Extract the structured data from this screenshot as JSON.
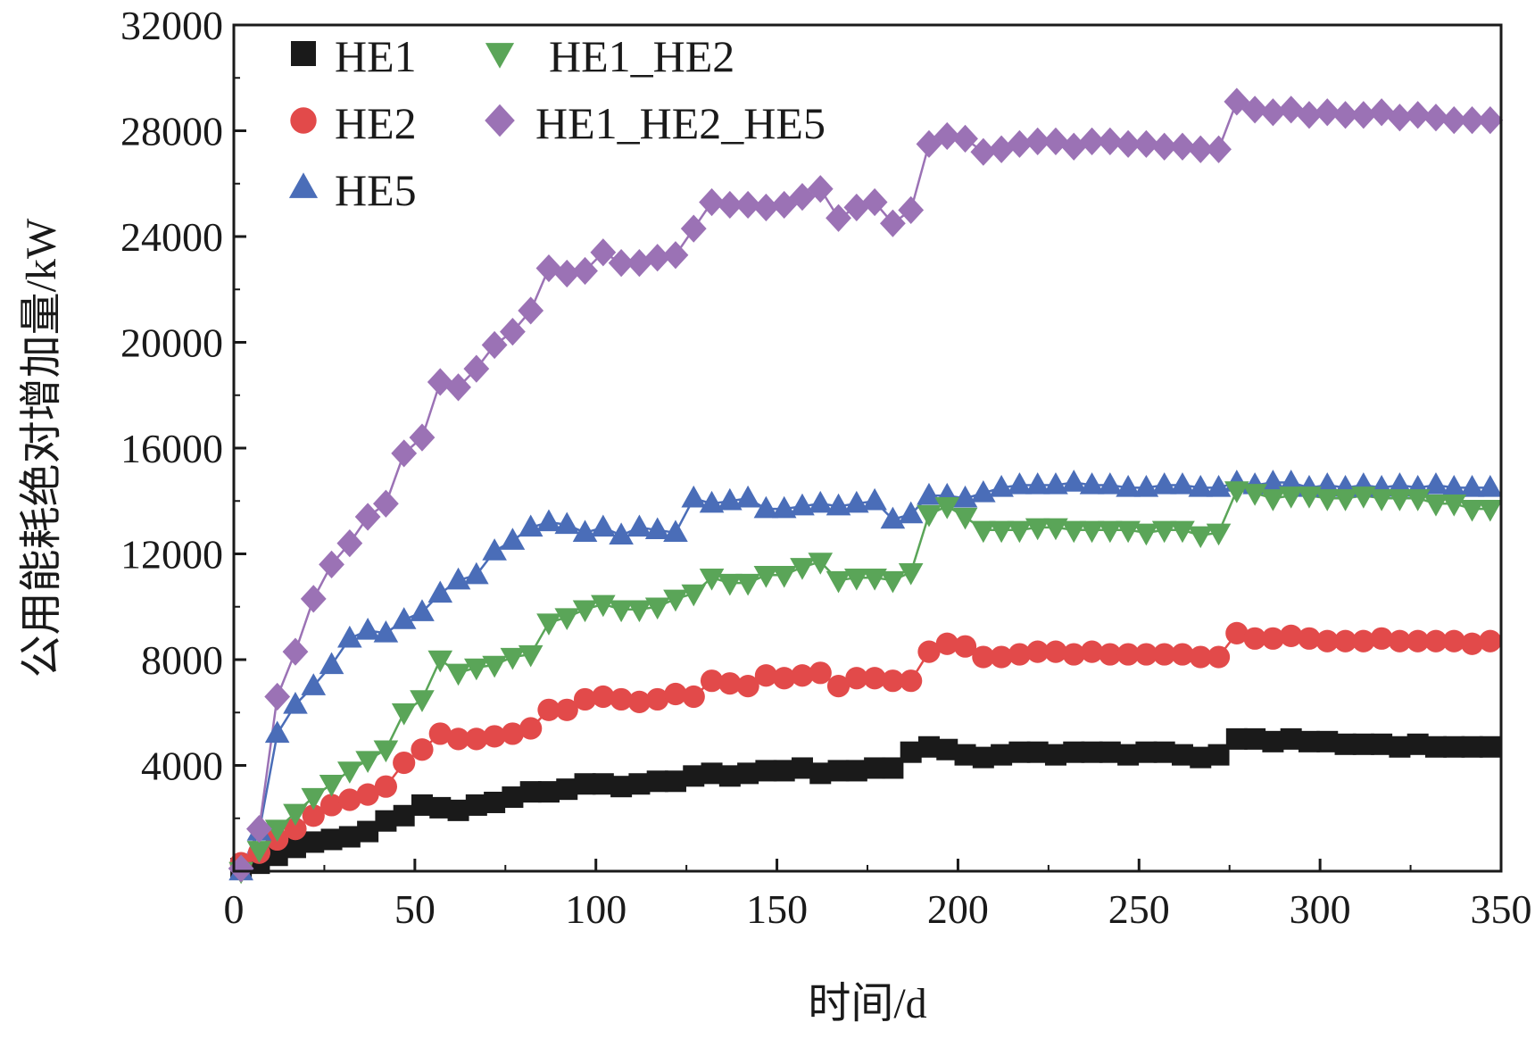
{
  "chart_data": {
    "type": "line",
    "title": "",
    "xlabel": "时间/d",
    "ylabel": "公用能耗绝对增加量/kW",
    "xlim": [
      0,
      350
    ],
    "ylim": [
      0,
      32000
    ],
    "xticks": [
      0,
      50,
      100,
      150,
      200,
      250,
      300,
      350
    ],
    "yticks": [
      4000,
      8000,
      12000,
      16000,
      20000,
      24000,
      28000,
      32000
    ],
    "xtick_labels": [
      "0",
      "50",
      "100",
      "150",
      "200",
      "250",
      "300",
      "350"
    ],
    "ytick_labels": [
      "4000",
      "8000",
      "12000",
      "16000",
      "20000",
      "24000",
      "28000",
      "32000"
    ],
    "grid": false,
    "legend_position": "top-left",
    "series": [
      {
        "name": "HE1",
        "color": "#1a1a1a",
        "marker": "square",
        "x": [
          2,
          7,
          12,
          17,
          22,
          27,
          32,
          37,
          42,
          47,
          52,
          57,
          62,
          67,
          72,
          77,
          82,
          87,
          92,
          97,
          102,
          107,
          112,
          117,
          122,
          127,
          132,
          137,
          142,
          147,
          152,
          157,
          162,
          167,
          172,
          177,
          182,
          187,
          192,
          197,
          202,
          207,
          212,
          217,
          222,
          227,
          232,
          237,
          242,
          247,
          252,
          257,
          262,
          267,
          272,
          277,
          282,
          287,
          292,
          297,
          302,
          307,
          312,
          317,
          322,
          327,
          332,
          337,
          342,
          347
        ],
        "y": [
          100,
          300,
          600,
          900,
          1100,
          1200,
          1300,
          1500,
          1900,
          2100,
          2500,
          2400,
          2300,
          2500,
          2600,
          2800,
          3000,
          3000,
          3100,
          3300,
          3300,
          3200,
          3300,
          3400,
          3400,
          3600,
          3700,
          3600,
          3700,
          3800,
          3800,
          3900,
          3700,
          3800,
          3800,
          3900,
          3900,
          4500,
          4700,
          4600,
          4400,
          4300,
          4400,
          4500,
          4500,
          4400,
          4500,
          4500,
          4500,
          4400,
          4500,
          4500,
          4400,
          4300,
          4400,
          5000,
          5000,
          4900,
          5000,
          4900,
          4900,
          4800,
          4800,
          4800,
          4700,
          4800,
          4700,
          4700,
          4700,
          4700
        ]
      },
      {
        "name": "HE2",
        "color": "#e24a4a",
        "marker": "circle",
        "x": [
          2,
          7,
          12,
          17,
          22,
          27,
          32,
          37,
          42,
          47,
          52,
          57,
          62,
          67,
          72,
          77,
          82,
          87,
          92,
          97,
          102,
          107,
          112,
          117,
          122,
          127,
          132,
          137,
          142,
          147,
          152,
          157,
          162,
          167,
          172,
          177,
          182,
          187,
          192,
          197,
          202,
          207,
          212,
          217,
          222,
          227,
          232,
          237,
          242,
          247,
          252,
          257,
          262,
          267,
          272,
          277,
          282,
          287,
          292,
          297,
          302,
          307,
          312,
          317,
          322,
          327,
          332,
          337,
          342,
          347
        ],
        "y": [
          300,
          700,
          1200,
          1600,
          2100,
          2500,
          2700,
          2900,
          3200,
          4100,
          4600,
          5200,
          5000,
          5000,
          5100,
          5200,
          5400,
          6100,
          6100,
          6500,
          6600,
          6500,
          6400,
          6500,
          6700,
          6600,
          7200,
          7100,
          7000,
          7400,
          7300,
          7400,
          7500,
          7000,
          7300,
          7300,
          7200,
          7200,
          8300,
          8600,
          8500,
          8100,
          8100,
          8200,
          8300,
          8300,
          8200,
          8300,
          8200,
          8200,
          8200,
          8200,
          8200,
          8100,
          8100,
          9000,
          8800,
          8800,
          8900,
          8800,
          8700,
          8700,
          8700,
          8800,
          8700,
          8700,
          8700,
          8700,
          8600,
          8700
        ]
      },
      {
        "name": "HE5",
        "color": "#4a6db8",
        "marker": "triangle-up",
        "x": [
          2,
          7,
          12,
          17,
          22,
          27,
          32,
          37,
          42,
          47,
          52,
          57,
          62,
          67,
          72,
          77,
          82,
          87,
          92,
          97,
          102,
          107,
          112,
          117,
          122,
          127,
          132,
          137,
          142,
          147,
          152,
          157,
          162,
          167,
          172,
          177,
          182,
          187,
          192,
          197,
          202,
          207,
          212,
          217,
          222,
          227,
          232,
          237,
          242,
          247,
          252,
          257,
          262,
          267,
          272,
          277,
          282,
          287,
          292,
          297,
          302,
          307,
          312,
          317,
          322,
          327,
          332,
          337,
          342,
          347
        ],
        "y": [
          0,
          1500,
          5200,
          6300,
          7000,
          7800,
          8800,
          9100,
          9000,
          9500,
          9800,
          10500,
          11000,
          11200,
          12100,
          12500,
          13000,
          13200,
          13100,
          12800,
          13000,
          12700,
          13000,
          12900,
          12800,
          14100,
          13900,
          14000,
          14100,
          13700,
          13700,
          13800,
          13900,
          13800,
          13900,
          14000,
          13300,
          13500,
          14200,
          14200,
          14100,
          14300,
          14500,
          14600,
          14600,
          14600,
          14700,
          14600,
          14600,
          14500,
          14500,
          14600,
          14600,
          14500,
          14500,
          14700,
          14600,
          14700,
          14700,
          14500,
          14600,
          14500,
          14600,
          14500,
          14600,
          14500,
          14600,
          14500,
          14500,
          14500
        ]
      },
      {
        "name": "HE1_HE2",
        "color": "#5aa558",
        "marker": "triangle-down",
        "x": [
          2,
          7,
          12,
          17,
          22,
          27,
          32,
          37,
          42,
          47,
          52,
          57,
          62,
          67,
          72,
          77,
          82,
          87,
          92,
          97,
          102,
          107,
          112,
          117,
          122,
          127,
          132,
          137,
          142,
          147,
          152,
          157,
          162,
          167,
          172,
          177,
          182,
          187,
          192,
          197,
          202,
          207,
          212,
          217,
          222,
          227,
          232,
          237,
          242,
          247,
          252,
          257,
          262,
          267,
          272,
          277,
          282,
          287,
          292,
          297,
          302,
          307,
          312,
          317,
          322,
          327,
          332,
          337,
          342,
          347
        ],
        "y": [
          0,
          800,
          1600,
          2200,
          2800,
          3300,
          3800,
          4200,
          4600,
          6000,
          6500,
          8000,
          7500,
          7700,
          7800,
          8100,
          8200,
          9400,
          9600,
          9900,
          10100,
          9900,
          9900,
          10000,
          10300,
          10500,
          11100,
          10900,
          10900,
          11200,
          11200,
          11500,
          11700,
          11000,
          11100,
          11100,
          11000,
          11300,
          13500,
          13800,
          13400,
          12900,
          12900,
          12900,
          13000,
          13000,
          12900,
          12900,
          12900,
          12900,
          12800,
          12900,
          12900,
          12700,
          12800,
          14400,
          14300,
          14100,
          14200,
          14200,
          14100,
          14100,
          14200,
          14100,
          14100,
          14100,
          13900,
          13900,
          13700,
          13700
        ]
      },
      {
        "name": "HE1_HE2_HE5",
        "color": "#9b72b5",
        "marker": "diamond",
        "x": [
          2,
          7,
          12,
          17,
          22,
          27,
          32,
          37,
          42,
          47,
          52,
          57,
          62,
          67,
          72,
          77,
          82,
          87,
          92,
          97,
          102,
          107,
          112,
          117,
          122,
          127,
          132,
          137,
          142,
          147,
          152,
          157,
          162,
          167,
          172,
          177,
          182,
          187,
          192,
          197,
          202,
          207,
          212,
          217,
          222,
          227,
          232,
          237,
          242,
          247,
          252,
          257,
          262,
          267,
          272,
          277,
          282,
          287,
          292,
          297,
          302,
          307,
          312,
          317,
          322,
          327,
          332,
          337,
          342,
          347
        ],
        "y": [
          100,
          1600,
          6600,
          8300,
          10300,
          11600,
          12400,
          13400,
          13900,
          15800,
          16400,
          18500,
          18300,
          19000,
          19900,
          20400,
          21200,
          22800,
          22600,
          22700,
          23400,
          23000,
          23000,
          23200,
          23300,
          24300,
          25300,
          25200,
          25200,
          25100,
          25200,
          25500,
          25800,
          24700,
          25100,
          25300,
          24500,
          25000,
          27500,
          27800,
          27700,
          27200,
          27300,
          27500,
          27600,
          27600,
          27400,
          27600,
          27600,
          27500,
          27500,
          27400,
          27400,
          27300,
          27300,
          29100,
          28800,
          28700,
          28800,
          28600,
          28700,
          28600,
          28600,
          28700,
          28500,
          28600,
          28500,
          28400,
          28400,
          28400
        ]
      }
    ]
  }
}
